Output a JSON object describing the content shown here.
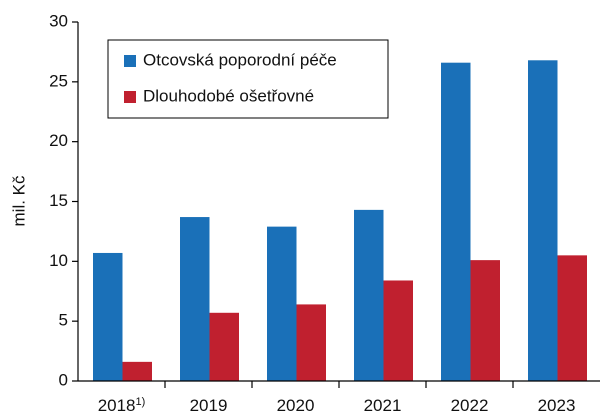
{
  "chart_data": {
    "type": "bar",
    "y_label": "mil. Kč",
    "categories": [
      "2018",
      "2019",
      "2020",
      "2021",
      "2022",
      "2023"
    ],
    "category_superscripts": [
      "1)",
      null,
      null,
      null,
      null,
      null
    ],
    "series": [
      {
        "name": "Otcovská poporodní péče",
        "color": "#1a70b8",
        "values": [
          10.7,
          13.7,
          12.9,
          14.3,
          26.6,
          26.8
        ]
      },
      {
        "name": "Dlouhodobé ošetřovné",
        "color": "#c0202f",
        "values": [
          1.6,
          5.7,
          6.4,
          8.4,
          10.1,
          10.5
        ]
      }
    ],
    "ylim": [
      0,
      30
    ],
    "yticks": [
      0,
      5,
      10,
      15,
      20,
      25,
      30
    ],
    "grid": false,
    "legend": "upper left"
  }
}
